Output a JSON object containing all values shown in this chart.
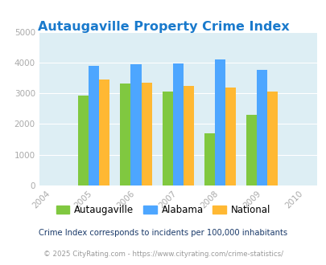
{
  "title": "Autaugaville Property Crime Index",
  "years": [
    2004,
    2005,
    2006,
    2007,
    2008,
    2009,
    2010
  ],
  "bar_years": [
    2005,
    2006,
    2007,
    2008,
    2009
  ],
  "autaugaville": [
    2920,
    3310,
    3060,
    1700,
    2300
  ],
  "alabama": [
    3900,
    3950,
    3975,
    4100,
    3760
  ],
  "national": [
    3450,
    3350,
    3250,
    3200,
    3050
  ],
  "color_autaugaville": "#80c840",
  "color_alabama": "#4da6ff",
  "color_national": "#ffb833",
  "bg_color": "#ddeef4",
  "ylim": [
    0,
    5000
  ],
  "yticks": [
    0,
    1000,
    2000,
    3000,
    4000,
    5000
  ],
  "legend_labels": [
    "Autaugaville",
    "Alabama",
    "National"
  ],
  "footnote1": "Crime Index corresponds to incidents per 100,000 inhabitants",
  "footnote2": "© 2025 CityRating.com - https://www.cityrating.com/crime-statistics/",
  "title_color": "#1a7acc",
  "footnote1_color": "#1a3a6a",
  "footnote2_color": "#999999",
  "tick_color": "#aaaaaa",
  "bar_width": 0.25
}
